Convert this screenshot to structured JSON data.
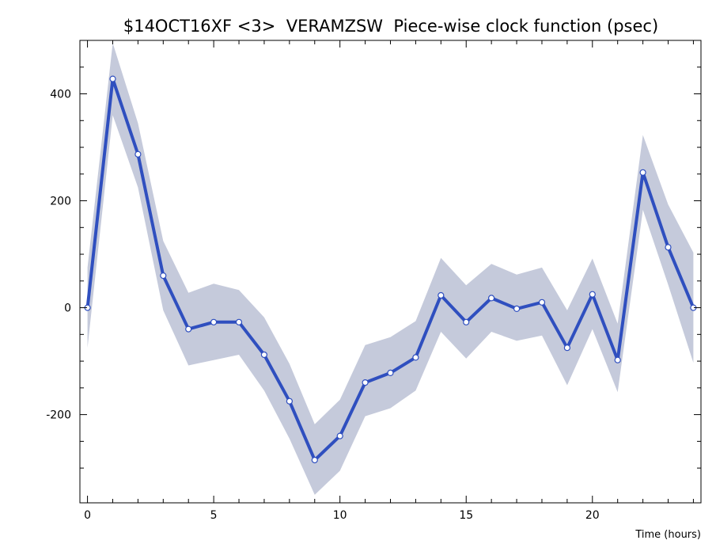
{
  "chart_data": {
    "type": "line",
    "title": "$14OCT16XF <3>  VERAMZSW  Piece-wise clock function (psec)",
    "xlabel": "Time (hours)",
    "ylabel": "",
    "xlim": [
      -0.3,
      24.3
    ],
    "ylim": [
      -365,
      500
    ],
    "xticks": [
      0,
      5,
      10,
      15,
      20
    ],
    "xtick_labels": [
      "0",
      "5",
      "10",
      "15",
      "20"
    ],
    "yticks": [
      -200,
      0,
      200,
      400
    ],
    "ytick_labels": [
      "-200",
      "0",
      "200",
      "400"
    ],
    "grid": false,
    "colors": {
      "line": "#2f4fbf",
      "band": "#c5cadb",
      "marker_fill": "#ffffff",
      "axis": "#000000"
    },
    "series": [
      {
        "x": [
          0,
          1,
          2,
          3,
          4,
          5,
          6,
          7,
          8,
          9,
          10,
          11,
          12,
          13,
          14,
          15,
          16,
          17,
          18,
          19,
          20,
          21,
          22,
          23,
          24
        ],
        "values": [
          0,
          428,
          287,
          60,
          -40,
          -27,
          -27,
          -88,
          -175,
          -285,
          -240,
          -140,
          -122,
          -93,
          23,
          -27,
          18,
          -2,
          10,
          -75,
          25,
          -98,
          253,
          113,
          0
        ],
        "upper": [
          75,
          495,
          345,
          125,
          28,
          45,
          33,
          -18,
          -105,
          -218,
          -172,
          -70,
          -55,
          -25,
          93,
          42,
          82,
          62,
          75,
          -5,
          92,
          -30,
          323,
          193,
          103
        ],
        "lower": [
          -75,
          360,
          225,
          -5,
          -108,
          -98,
          -88,
          -155,
          -245,
          -350,
          -305,
          -203,
          -188,
          -155,
          -45,
          -95,
          -45,
          -62,
          -52,
          -145,
          -40,
          -158,
          183,
          43,
          -103
        ]
      }
    ]
  }
}
